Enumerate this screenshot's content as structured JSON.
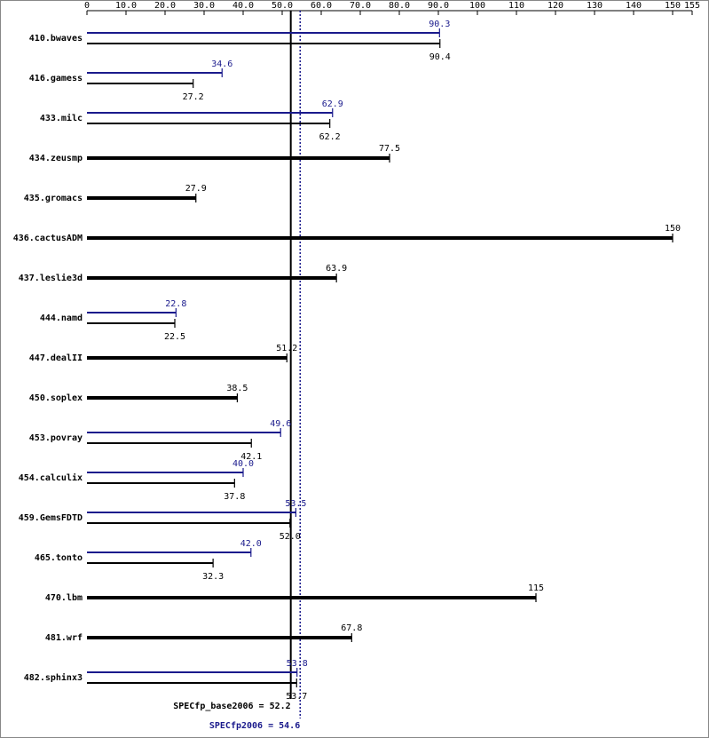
{
  "chart_data": {
    "type": "bar",
    "orientation": "horizontal",
    "categories": [
      "410.bwaves",
      "416.gamess",
      "433.milc",
      "434.zeusmp",
      "435.gromacs",
      "436.cactusADM",
      "437.leslie3d",
      "444.namd",
      "447.dealII",
      "450.soplex",
      "453.povray",
      "454.calculix",
      "459.GemsFDTD",
      "465.tonto",
      "470.lbm",
      "481.wrf",
      "482.sphinx3"
    ],
    "series": [
      {
        "color": "#1a1a8c",
        "values": [
          90.3,
          34.6,
          62.9,
          null,
          null,
          null,
          null,
          22.8,
          null,
          null,
          49.6,
          40.0,
          53.5,
          42.0,
          null,
          null,
          53.8
        ],
        "value_labels": [
          "90.3",
          "34.6",
          "62.9",
          null,
          null,
          null,
          null,
          "22.8",
          null,
          null,
          "49.6",
          "40.0",
          "53.5",
          "42.0",
          null,
          null,
          "53.8"
        ]
      },
      {
        "color": "#000000",
        "values": [
          90.4,
          27.2,
          62.2,
          77.5,
          27.9,
          150,
          63.9,
          22.5,
          51.2,
          38.5,
          42.1,
          37.8,
          52.0,
          32.3,
          115,
          67.8,
          53.7
        ],
        "value_labels": [
          "90.4",
          "27.2",
          "62.2",
          "77.5",
          "27.9",
          "150",
          "63.9",
          "22.5",
          "51.2",
          "38.5",
          "42.1",
          "37.8",
          "52.0",
          "32.3",
          "115",
          "67.8",
          "53.7"
        ]
      }
    ],
    "xlim": [
      0,
      155
    ],
    "xticks": [
      0,
      {
        "value": 10,
        "label": "10.0"
      },
      {
        "value": 20,
        "label": "20.0"
      },
      {
        "value": 30,
        "label": "30.0"
      },
      {
        "value": 40,
        "label": "40.0"
      },
      {
        "value": 50,
        "label": "50.0"
      },
      {
        "value": 60,
        "label": "60.0"
      },
      {
        "value": 70,
        "label": "70.0"
      },
      {
        "value": 80,
        "label": "80.0"
      },
      {
        "value": 90,
        "label": "90.0"
      },
      100,
      110,
      120,
      130,
      140,
      150,
      155
    ],
    "reference_lines": [
      {
        "label": "SPECfp_base2006 = 52.2",
        "value": 52.2,
        "color": "#000000",
        "style": "solid"
      },
      {
        "label": "SPECfp2006 = 54.6",
        "value": 54.6,
        "color": "#1a1a8c",
        "style": "dotted"
      }
    ]
  }
}
